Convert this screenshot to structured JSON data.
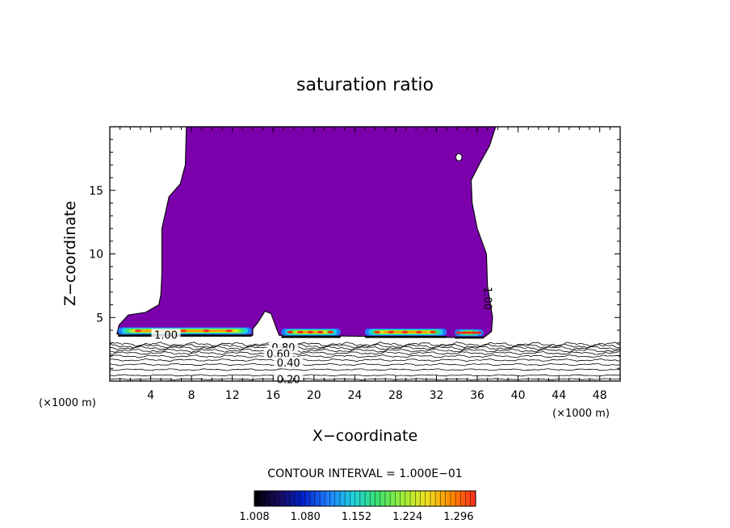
{
  "chart_data": {
    "type": "heatmap",
    "title": "saturation ratio",
    "xlabel": "X−coordinate",
    "ylabel": "Z−coordinate",
    "x_unit_left": "(×1000 m)",
    "x_unit_right": "(×1000 m)",
    "xlim": [
      0,
      50
    ],
    "ylim": [
      0,
      20
    ],
    "x_ticks": [
      4,
      8,
      12,
      16,
      20,
      24,
      28,
      32,
      36,
      40,
      44,
      48
    ],
    "y_ticks": [
      5,
      10,
      15
    ],
    "contour_interval_text": "CONTOUR INTERVAL = 1.000E−01",
    "colorbar_labels": [
      "1.008",
      "1.080",
      "1.152",
      "1.224",
      "1.296"
    ],
    "colorbar_range": [
      1.008,
      1.32
    ],
    "contour_labels": [
      {
        "text": "1.00",
        "x": 5.5,
        "z": 3.6
      },
      {
        "text": "1.00",
        "x": 37.0,
        "z": 6.5
      },
      {
        "text": "0.80",
        "x": 17.0,
        "z": 2.6
      },
      {
        "text": "0.60",
        "x": 16.5,
        "z": 2.1
      },
      {
        "text": "0.40",
        "x": 17.5,
        "z": 1.4
      },
      {
        "text": "0.20",
        "x": 17.5,
        "z": 0.1
      }
    ],
    "colors": {
      "supersaturated_fill": "#7b00ab",
      "frame": "#000000",
      "colormap": [
        "#000000",
        "#1a0a5e",
        "#0022cc",
        "#1f7dff",
        "#20d0e0",
        "#39e070",
        "#9af03a",
        "#f0e020",
        "#ff8c00",
        "#ff2a1a"
      ]
    }
  }
}
